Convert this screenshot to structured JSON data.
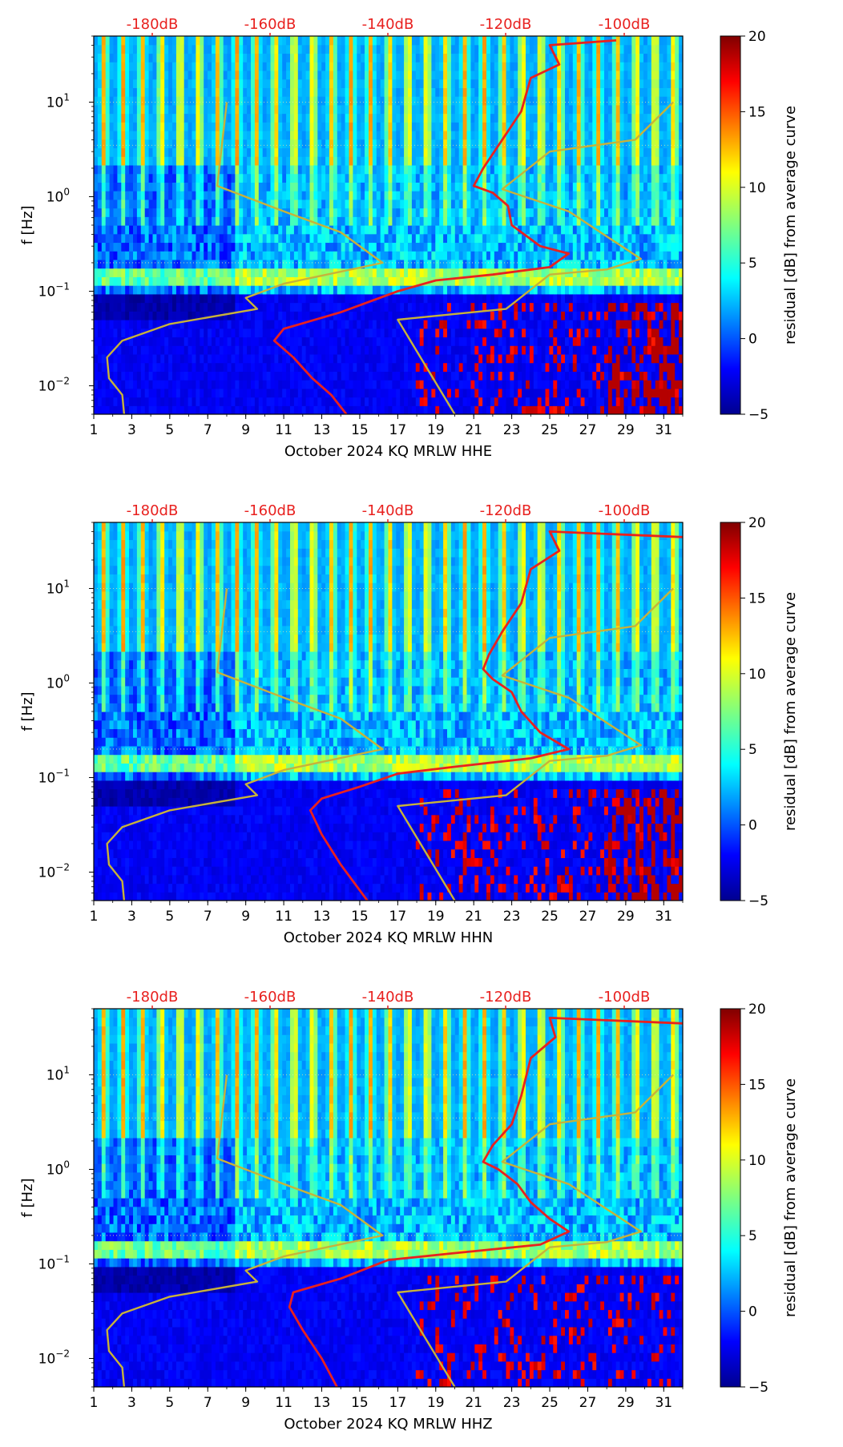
{
  "figure": {
    "type": "spectrogram-panels",
    "colormap": "jet",
    "ylabel": "f [Hz]",
    "colorbar_label": "residual [dB] from average curve",
    "colorbar_range": [
      -5,
      20
    ],
    "colorbar_ticks": [
      "20",
      "15",
      "10",
      "5",
      "0",
      "−5"
    ],
    "db_labels": [
      "-180dB",
      "-160dB",
      "-140dB",
      "-120dB",
      "-100dB"
    ],
    "x_ticks": [
      "1",
      "3",
      "5",
      "7",
      "9",
      "11",
      "13",
      "15",
      "17",
      "19",
      "21",
      "23",
      "25",
      "27",
      "29",
      "31"
    ],
    "y_ticks": [
      {
        "base": "10",
        "exp": "1"
      },
      {
        "base": "10",
        "exp": "0"
      },
      {
        "base": "10",
        "exp": "−1"
      },
      {
        "base": "10",
        "exp": "−2"
      }
    ],
    "colors": {
      "red_curve": "#e8211f",
      "model_curve": "#c8b23a",
      "db_text": "#e8211f"
    }
  },
  "panels": [
    {
      "id": "hhe",
      "xlabel": "October 2024 KQ MRLW  HHE"
    },
    {
      "id": "hhn",
      "xlabel": "October 2024 KQ MRLW  HHN"
    },
    {
      "id": "hhz",
      "xlabel": "October 2024 KQ MRLW  HHZ"
    }
  ],
  "chart_data": [
    {
      "type": "heatmap",
      "title": "",
      "xlabel": "October 2024 KQ MRLW  HHE",
      "ylabel": "f [Hz]",
      "xlim": [
        1,
        32
      ],
      "ylim": [
        0.005,
        50
      ],
      "yscale": "log",
      "colorbar": {
        "label": "residual [dB] from average curve",
        "range": [
          -5,
          20
        ]
      },
      "top_axis_db_labels": [
        "-180dB",
        "-160dB",
        "-140dB",
        "-120dB",
        "-100dB"
      ],
      "series": [
        {
          "name": "median PSD (red)",
          "points": [
            [
              28.5,
              45
            ],
            [
              25,
              40
            ],
            [
              25.5,
              25
            ],
            [
              24,
              18
            ],
            [
              23.5,
              8
            ],
            [
              22.5,
              4
            ],
            [
              21.5,
              2
            ],
            [
              21,
              1.3
            ],
            [
              22,
              1.1
            ],
            [
              22.8,
              0.8
            ],
            [
              23,
              0.5
            ],
            [
              24.5,
              0.3
            ],
            [
              26,
              0.25
            ],
            [
              25,
              0.18
            ],
            [
              22,
              0.15
            ],
            [
              19,
              0.13
            ],
            [
              17,
              0.1
            ],
            [
              14,
              0.06
            ],
            [
              11,
              0.04
            ],
            [
              10.5,
              0.03
            ],
            [
              11.5,
              0.02
            ],
            [
              12.5,
              0.012
            ],
            [
              13.5,
              0.008
            ],
            [
              14.3,
              0.005
            ]
          ]
        },
        {
          "name": "noise model (yellow)",
          "points": [
            [
              8,
              10
            ],
            [
              7.5,
              1.3
            ],
            [
              11,
              0.7
            ],
            [
              14,
              0.42
            ],
            [
              16.2,
              0.2
            ],
            [
              11,
              0.12
            ],
            [
              9,
              0.085
            ],
            [
              9.6,
              0.065
            ],
            [
              5,
              0.045
            ],
            [
              2.5,
              0.03
            ],
            [
              1.7,
              0.02
            ],
            [
              1.8,
              0.012
            ],
            [
              2.5,
              0.008
            ],
            [
              2.6,
              0.005
            ]
          ]
        },
        {
          "name": "noise model high (yellow)",
          "points": [
            [
              31.5,
              10
            ],
            [
              29.5,
              4
            ],
            [
              25,
              3
            ],
            [
              22.5,
              1.2
            ],
            [
              26,
              0.7
            ],
            [
              29.8,
              0.22
            ],
            [
              28,
              0.17
            ],
            [
              25,
              0.15
            ],
            [
              22.7,
              0.065
            ],
            [
              17,
              0.05
            ],
            [
              20,
              0.005
            ]
          ]
        }
      ]
    },
    {
      "type": "heatmap",
      "title": "",
      "xlabel": "October 2024 KQ MRLW  HHN",
      "ylabel": "f [Hz]",
      "xlim": [
        1,
        32
      ],
      "ylim": [
        0.005,
        50
      ],
      "yscale": "log",
      "colorbar": {
        "label": "residual [dB] from average curve",
        "range": [
          -5,
          20
        ]
      },
      "top_axis_db_labels": [
        "-180dB",
        "-160dB",
        "-140dB",
        "-120dB",
        "-100dB"
      ],
      "series": [
        {
          "name": "median PSD (red)",
          "points": [
            [
              32,
              35
            ],
            [
              25,
              40
            ],
            [
              25.5,
              25
            ],
            [
              24,
              16
            ],
            [
              23.5,
              7
            ],
            [
              22.5,
              3.5
            ],
            [
              21.8,
              2
            ],
            [
              21.5,
              1.4
            ],
            [
              22,
              1.1
            ],
            [
              23,
              0.8
            ],
            [
              23.5,
              0.5
            ],
            [
              24.5,
              0.3
            ],
            [
              26,
              0.2
            ],
            [
              24,
              0.16
            ],
            [
              20,
              0.13
            ],
            [
              17,
              0.11
            ],
            [
              15,
              0.08
            ],
            [
              13,
              0.06
            ],
            [
              12.4,
              0.045
            ],
            [
              13,
              0.025
            ],
            [
              14,
              0.012
            ],
            [
              15.4,
              0.005
            ]
          ]
        },
        {
          "name": "noise model (yellow)",
          "points": [
            [
              8,
              10
            ],
            [
              7.5,
              1.3
            ],
            [
              11,
              0.7
            ],
            [
              14,
              0.42
            ],
            [
              16.2,
              0.2
            ],
            [
              11,
              0.12
            ],
            [
              9,
              0.085
            ],
            [
              9.6,
              0.065
            ],
            [
              5,
              0.045
            ],
            [
              2.5,
              0.03
            ],
            [
              1.7,
              0.02
            ],
            [
              1.8,
              0.012
            ],
            [
              2.5,
              0.008
            ],
            [
              2.6,
              0.005
            ]
          ]
        },
        {
          "name": "noise model high (yellow)",
          "points": [
            [
              31.5,
              10
            ],
            [
              29.5,
              4
            ],
            [
              25,
              3
            ],
            [
              22.5,
              1.2
            ],
            [
              26,
              0.7
            ],
            [
              29.8,
              0.22
            ],
            [
              28,
              0.17
            ],
            [
              25,
              0.15
            ],
            [
              22.7,
              0.065
            ],
            [
              17,
              0.05
            ],
            [
              20,
              0.005
            ]
          ]
        }
      ]
    },
    {
      "type": "heatmap",
      "title": "",
      "xlabel": "October 2024 KQ MRLW  HHZ",
      "ylabel": "f [Hz]",
      "xlim": [
        1,
        32
      ],
      "ylim": [
        0.005,
        50
      ],
      "yscale": "log",
      "colorbar": {
        "label": "residual [dB] from average curve",
        "range": [
          -5,
          20
        ]
      },
      "top_axis_db_labels": [
        "-180dB",
        "-160dB",
        "-140dB",
        "-120dB",
        "-100dB"
      ],
      "series": [
        {
          "name": "median PSD (red)",
          "points": [
            [
              32,
              35
            ],
            [
              25,
              40
            ],
            [
              25.3,
              25
            ],
            [
              24,
              15
            ],
            [
              23.5,
              6
            ],
            [
              23,
              3
            ],
            [
              22,
              1.8
            ],
            [
              21.5,
              1.2
            ],
            [
              22.3,
              1
            ],
            [
              23.3,
              0.7
            ],
            [
              24,
              0.45
            ],
            [
              25,
              0.3
            ],
            [
              26,
              0.22
            ],
            [
              24.5,
              0.16
            ],
            [
              20,
              0.13
            ],
            [
              16.5,
              0.11
            ],
            [
              14,
              0.07
            ],
            [
              11.5,
              0.05
            ],
            [
              11.3,
              0.035
            ],
            [
              12,
              0.02
            ],
            [
              13,
              0.01
            ],
            [
              13.8,
              0.005
            ]
          ]
        },
        {
          "name": "noise model (yellow)",
          "points": [
            [
              8,
              10
            ],
            [
              7.5,
              1.3
            ],
            [
              11,
              0.7
            ],
            [
              14,
              0.42
            ],
            [
              16.2,
              0.2
            ],
            [
              11,
              0.12
            ],
            [
              9,
              0.085
            ],
            [
              9.6,
              0.065
            ],
            [
              5,
              0.045
            ],
            [
              2.5,
              0.03
            ],
            [
              1.7,
              0.02
            ],
            [
              1.8,
              0.012
            ],
            [
              2.5,
              0.008
            ],
            [
              2.6,
              0.005
            ]
          ]
        },
        {
          "name": "noise model high (yellow)",
          "points": [
            [
              31.5,
              10
            ],
            [
              29.5,
              4
            ],
            [
              25,
              3
            ],
            [
              22.5,
              1.2
            ],
            [
              26,
              0.7
            ],
            [
              29.8,
              0.22
            ],
            [
              28,
              0.17
            ],
            [
              25,
              0.15
            ],
            [
              22.7,
              0.065
            ],
            [
              17,
              0.05
            ],
            [
              20,
              0.005
            ]
          ]
        }
      ]
    }
  ]
}
